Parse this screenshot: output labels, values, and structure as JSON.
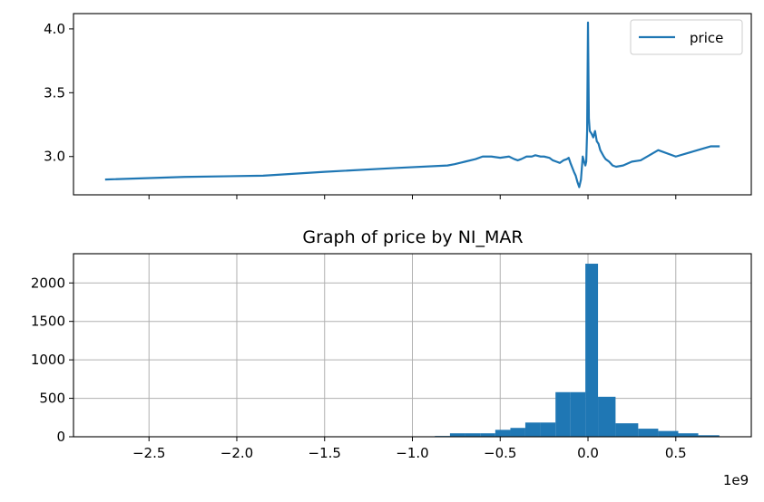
{
  "chart_data": [
    {
      "type": "line",
      "title": "",
      "xlabel": "",
      "ylabel": "",
      "ylim": [
        2.7,
        4.12
      ],
      "xlim": [
        -2930000000.0,
        930000000.0
      ],
      "y_ticks": [
        3.0,
        3.5,
        4.0
      ],
      "y_tick_labels": [
        "3.0",
        "3.5",
        "4.0"
      ],
      "x_ticks": [
        -2500000000.0,
        -2000000000.0,
        -1500000000.0,
        -1000000000.0,
        -500000000.0,
        0.0,
        500000000.0
      ],
      "x_tick_labels_shown": false,
      "grid": false,
      "legend_position": "top-right",
      "series": [
        {
          "name": "price",
          "color": "#1f77b4",
          "x": [
            -2750000000.0,
            -2300000000.0,
            -1850000000.0,
            -1500000000.0,
            -1100000000.0,
            -800000000.0,
            -760000000.0,
            -700000000.0,
            -640000000.0,
            -600000000.0,
            -550000000.0,
            -500000000.0,
            -450000000.0,
            -420000000.0,
            -400000000.0,
            -380000000.0,
            -350000000.0,
            -320000000.0,
            -300000000.0,
            -270000000.0,
            -250000000.0,
            -220000000.0,
            -200000000.0,
            -180000000.0,
            -160000000.0,
            -140000000.0,
            -120000000.0,
            -110000000.0,
            -100000000.0,
            -80000000.0,
            -70000000.0,
            -60000000.0,
            -50000000.0,
            -40000000.0,
            -30000000.0,
            -20000000.0,
            -15000000.0,
            -10000000.0,
            -5000000.0,
            0.0,
            5000000.0,
            10000000.0,
            20000000.0,
            30000000.0,
            40000000.0,
            50000000.0,
            60000000.0,
            70000000.0,
            90000000.0,
            100000000.0,
            120000000.0,
            140000000.0,
            160000000.0,
            200000000.0,
            250000000.0,
            300000000.0,
            400000000.0,
            500000000.0,
            600000000.0,
            700000000.0,
            750000000.0
          ],
          "y": [
            2.82,
            2.84,
            2.85,
            2.88,
            2.91,
            2.93,
            2.94,
            2.96,
            2.98,
            3.0,
            3.0,
            2.99,
            3.0,
            2.98,
            2.97,
            2.98,
            3.0,
            3.0,
            3.01,
            3.0,
            3.0,
            2.99,
            2.97,
            2.96,
            2.95,
            2.97,
            2.98,
            2.99,
            2.95,
            2.88,
            2.85,
            2.8,
            2.76,
            2.82,
            3.0,
            2.95,
            2.93,
            2.96,
            3.2,
            4.05,
            3.3,
            3.2,
            3.18,
            3.15,
            3.2,
            3.12,
            3.1,
            3.05,
            3.0,
            2.98,
            2.96,
            2.93,
            2.92,
            2.93,
            2.96,
            2.97,
            3.05,
            3.0,
            3.04,
            3.08,
            3.08
          ]
        }
      ]
    },
    {
      "type": "bar",
      "title": "Graph of price by NI_MAR",
      "xlabel": "",
      "ylabel": "",
      "ylim": [
        0,
        2380
      ],
      "xlim": [
        -2930000000.0,
        930000000.0
      ],
      "x_ticks": [
        -2500000000.0,
        -2000000000.0,
        -1500000000.0,
        -1000000000.0,
        -500000000.0,
        0.0,
        500000000.0
      ],
      "x_tick_labels": [
        "−2.5",
        "−2.0",
        "−1.5",
        "−1.0",
        "−0.5",
        "0.0",
        "0.5"
      ],
      "x_offset_label": "1e9",
      "y_ticks": [
        0,
        500,
        1000,
        1500,
        2000
      ],
      "y_tick_labels": [
        "0",
        "500",
        "1000",
        "1500",
        "2000"
      ],
      "grid": true,
      "color": "#1f77b4",
      "bins": [
        {
          "x0": -872000000.0,
          "x1": -786000000.0,
          "count": 10
        },
        {
          "x0": -786000000.0,
          "x1": -700000000.0,
          "count": 45
        },
        {
          "x0": -700000000.0,
          "x1": -614000000.0,
          "count": 45
        },
        {
          "x0": -614000000.0,
          "x1": -528000000.0,
          "count": 45
        },
        {
          "x0": -528000000.0,
          "x1": -442000000.0,
          "count": 90
        },
        {
          "x0": -442000000.0,
          "x1": -357000000.0,
          "count": 115
        },
        {
          "x0": -357000000.0,
          "x1": -271000000.0,
          "count": 185
        },
        {
          "x0": -271000000.0,
          "x1": -185000000.0,
          "count": 185
        },
        {
          "x0": -185000000.0,
          "x1": -100000000.0,
          "count": 580
        },
        {
          "x0": -100000000.0,
          "x1": -15000000.0,
          "count": 580
        },
        {
          "x0": -15000000.0,
          "x1": 57000000.0,
          "count": 2250
        },
        {
          "x0": 57000000.0,
          "x1": 157000000.0,
          "count": 520
        },
        {
          "x0": 157000000.0,
          "x1": 286000000.0,
          "count": 175
        },
        {
          "x0": 286000000.0,
          "x1": 400000000.0,
          "count": 105
        },
        {
          "x0": 400000000.0,
          "x1": 514000000.0,
          "count": 75
        },
        {
          "x0": 514000000.0,
          "x1": 628000000.0,
          "count": 45
        },
        {
          "x0": 628000000.0,
          "x1": 748000000.0,
          "count": 20
        }
      ]
    }
  ]
}
